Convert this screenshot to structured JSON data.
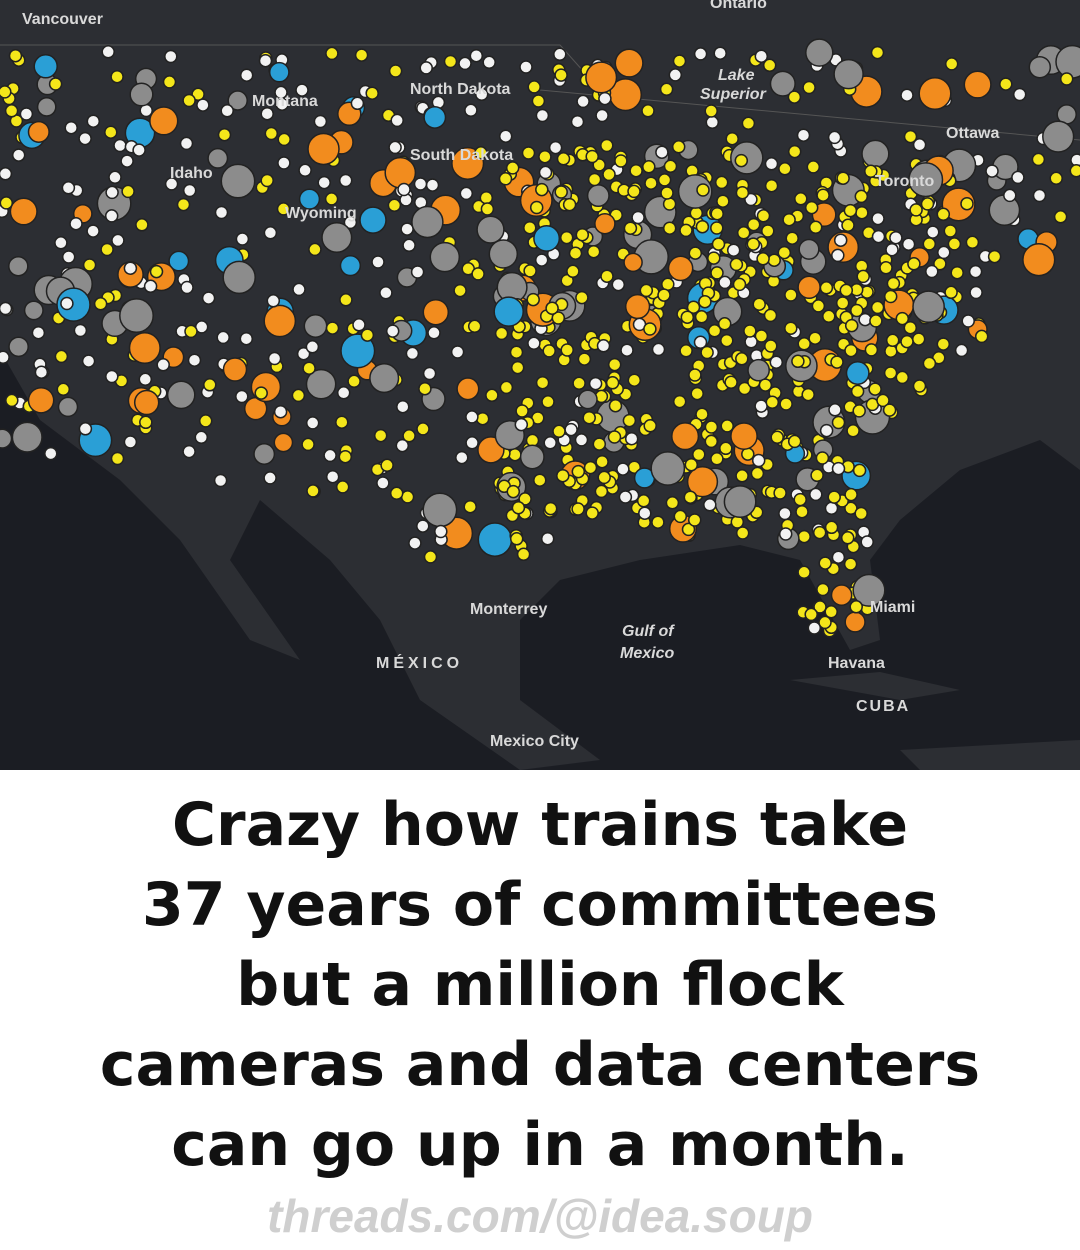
{
  "map": {
    "labels": [
      "Vancouver",
      "Ontario",
      "Montana",
      "North Dakota",
      "Lake",
      "Superior",
      "Ottawa",
      "Toronto",
      "South Dakota",
      "Wyoming",
      "Idaho",
      "Monterrey",
      "Gulf of",
      "Mexico",
      "MÉXICO",
      "Havana",
      "CUBA",
      "Mexico City",
      "Miami"
    ]
  },
  "caption": {
    "lines": [
      "Crazy how trains take",
      "37 years of committees",
      "but a million flock",
      "cameras and data centers",
      "can go up in a month."
    ],
    "watermark": "threads.com/@idea.soup"
  }
}
